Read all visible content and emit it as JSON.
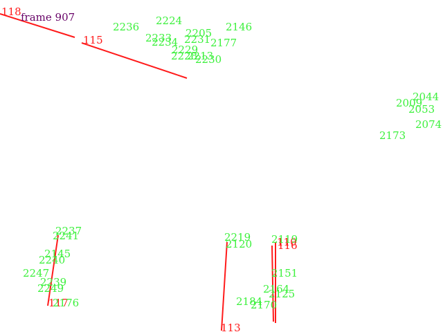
{
  "frame_label": "frame 907",
  "colors": {
    "track_line": "#ff1a1a",
    "green_label": "#3cf03c",
    "frame_text": "#660066"
  },
  "tracks": [
    {
      "id": "118",
      "label": "118"
    },
    {
      "id": "115",
      "label": "115"
    },
    {
      "id": "117",
      "label": "117"
    },
    {
      "id": "113",
      "label": "113"
    },
    {
      "id": "110",
      "label": "110"
    },
    {
      "id": "116",
      "label": "116"
    }
  ],
  "points": [
    {
      "label": "2236"
    },
    {
      "label": "2224"
    },
    {
      "label": "2146"
    },
    {
      "label": "2205"
    },
    {
      "label": "2233"
    },
    {
      "label": "2234"
    },
    {
      "label": "2231"
    },
    {
      "label": "2177"
    },
    {
      "label": "2229"
    },
    {
      "label": "2228"
    },
    {
      "label": "2213"
    },
    {
      "label": "2230"
    },
    {
      "label": "2044"
    },
    {
      "label": "2009"
    },
    {
      "label": "2053"
    },
    {
      "label": "2074"
    },
    {
      "label": "2173"
    },
    {
      "label": "2237"
    },
    {
      "label": "2241"
    },
    {
      "label": "2145"
    },
    {
      "label": "2240"
    },
    {
      "label": "2247"
    },
    {
      "label": "2239"
    },
    {
      "label": "2249"
    },
    {
      "label": "2176"
    },
    {
      "label": "2219"
    },
    {
      "label": "2120"
    },
    {
      "label": "2119"
    },
    {
      "label": "2164"
    },
    {
      "label": "2151"
    },
    {
      "label": "2184"
    },
    {
      "label": "2125"
    },
    {
      "label": "2170"
    }
  ]
}
